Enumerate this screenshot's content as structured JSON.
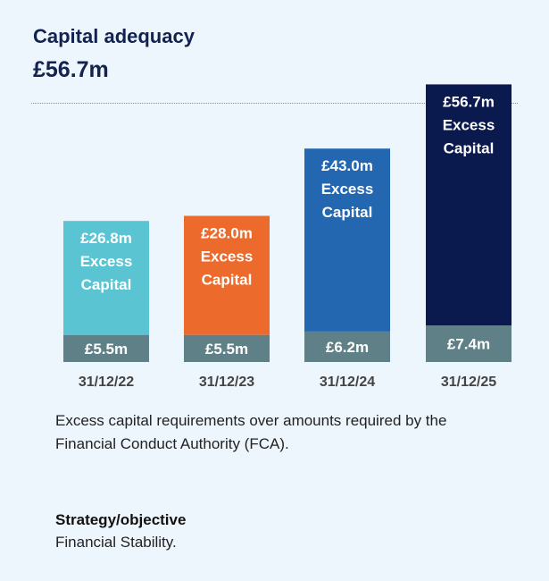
{
  "header": {
    "title": "Capital adequacy",
    "headline_value": "£56.7m"
  },
  "chart_data": {
    "type": "bar",
    "stacked": true,
    "categories": [
      "31/12/22",
      "31/12/23",
      "31/12/24",
      "31/12/25"
    ],
    "series": [
      {
        "name": "Excess Capital",
        "values": [
          26.8,
          28.0,
          43.0,
          56.7
        ],
        "labels": [
          "£26.8m",
          "£28.0m",
          "£43.0m",
          "£56.7m"
        ],
        "colors": [
          "#5bc4d3",
          "#ec6a2c",
          "#2367b0",
          "#0b1a4e"
        ]
      },
      {
        "values": [
          5.5,
          5.5,
          6.2,
          7.4
        ],
        "labels": [
          "£5.5m",
          "£5.5m",
          "£6.2m",
          "£7.4m"
        ],
        "color": "#5f8086"
      }
    ],
    "series_label_line1": "Excess",
    "series_label_line2": "Capital",
    "grid": false
  },
  "description": "Excess capital requirements over amounts required by the Financial Conduct Authority (FCA).",
  "strategy": {
    "heading": "Strategy/objective",
    "text": "Financial Stability."
  }
}
